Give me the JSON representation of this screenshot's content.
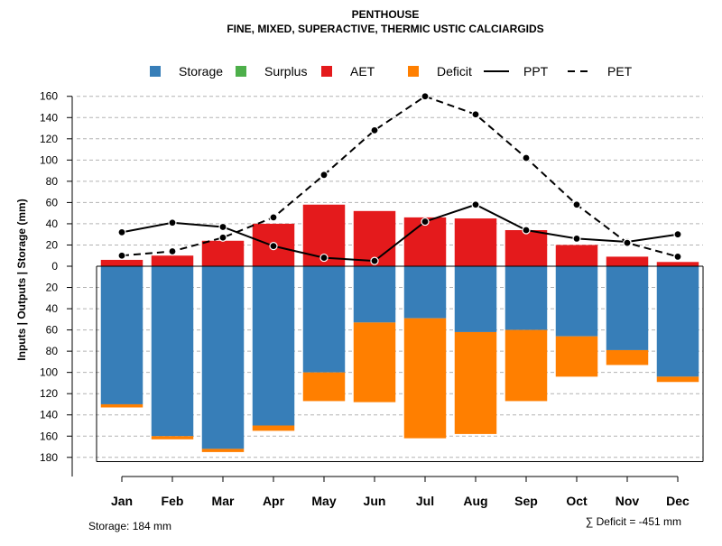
{
  "chart_data": {
    "type": "bar",
    "title": "PENTHOUSE",
    "subtitle": "FINE, MIXED, SUPERACTIVE, THERMIC USTIC CALCIARGIDS",
    "ylabel": "Inputs | Outputs | Storage    (mm)",
    "categories": [
      "Jan",
      "Feb",
      "Mar",
      "Apr",
      "May",
      "Jun",
      "Jul",
      "Aug",
      "Sep",
      "Oct",
      "Nov",
      "Dec"
    ],
    "ylim": [
      -184,
      160
    ],
    "yticks": [
      160,
      140,
      120,
      100,
      80,
      60,
      40,
      20,
      0,
      -20,
      -40,
      -60,
      -80,
      -100,
      -120,
      -140,
      -160,
      -180
    ],
    "ytick_labels": [
      "160",
      "140",
      "120",
      "100",
      "80",
      "60",
      "40",
      "20",
      "0",
      "20",
      "40",
      "60",
      "80",
      "100",
      "120",
      "140",
      "160",
      "180"
    ],
    "grid": true,
    "legend_position": "top",
    "legend": [
      {
        "label": "Storage",
        "kind": "box",
        "color": "#377EB8"
      },
      {
        "label": "Surplus",
        "kind": "box",
        "color": "#4DAF4A"
      },
      {
        "label": "AET",
        "kind": "box",
        "color": "#E41A1C"
      },
      {
        "label": "Deficit",
        "kind": "box",
        "color": "#FF7F00"
      },
      {
        "label": "PPT",
        "kind": "solid-line",
        "color": "#000000"
      },
      {
        "label": "PET",
        "kind": "dashed-line",
        "color": "#000000"
      }
    ],
    "series": [
      {
        "name": "AET",
        "values": [
          6,
          10,
          24,
          40,
          58,
          52,
          46,
          45,
          34,
          20,
          9,
          4
        ]
      },
      {
        "name": "Storage",
        "values": [
          -130,
          -160,
          -172,
          -150,
          -100,
          -53,
          -49,
          -62,
          -60,
          -66,
          -79,
          -104
        ]
      },
      {
        "name": "Deficit",
        "values": [
          -3,
          -3,
          -3,
          -5,
          -27,
          -75,
          -113,
          -96,
          -67,
          -38,
          -14,
          -5
        ]
      },
      {
        "name": "PPT",
        "values": [
          32,
          41,
          37,
          19,
          8,
          5,
          42,
          58,
          34,
          26,
          23,
          30
        ]
      },
      {
        "name": "PET",
        "values": [
          10,
          14,
          27,
          46,
          86,
          128,
          160,
          143,
          102,
          58,
          22,
          9
        ]
      }
    ],
    "soil_storage_capacity": 184,
    "storage_note": "Storage: 184 mm",
    "deficit_note": "∑ Deficit = -451 mm"
  }
}
